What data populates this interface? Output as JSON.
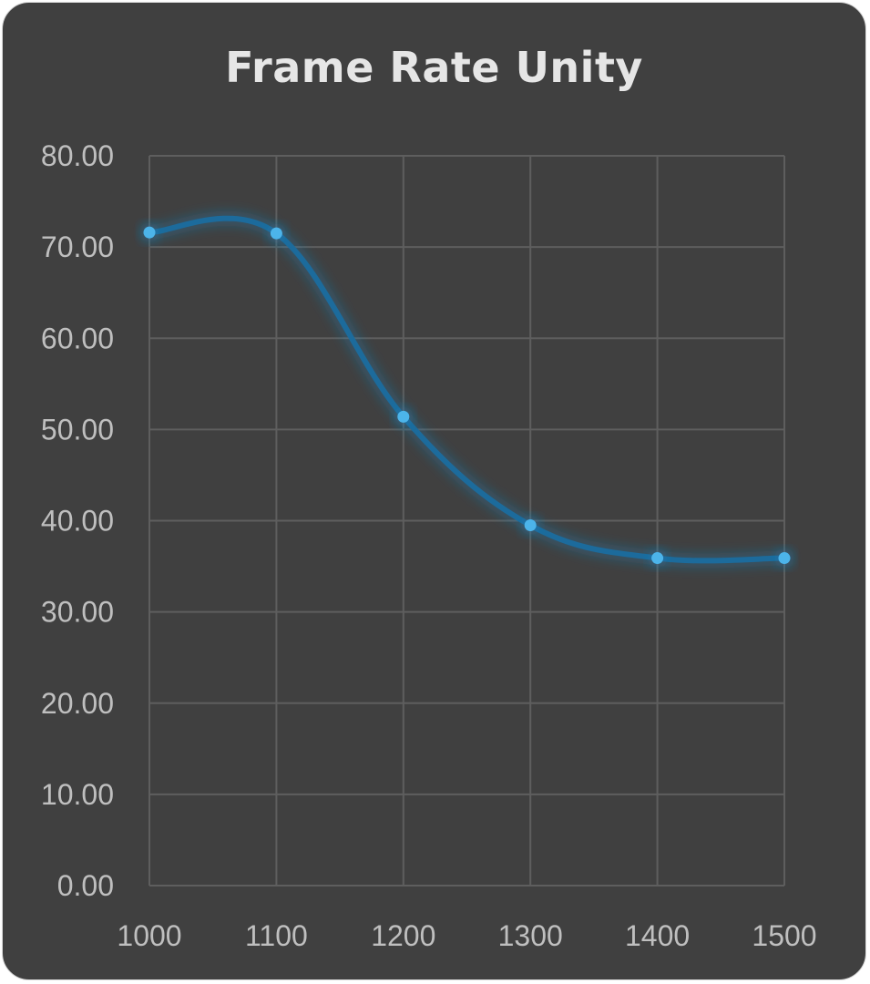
{
  "chart_data": {
    "type": "line",
    "title": "Frame Rate Unity",
    "xlabel": "",
    "ylabel": "",
    "categories": [
      "1000",
      "1100",
      "1200",
      "1300",
      "1400",
      "1500"
    ],
    "series": [
      {
        "values": [
          71.6,
          71.5,
          51.4,
          39.5,
          35.9,
          35.9
        ]
      }
    ],
    "ylim": [
      0,
      80
    ],
    "y_ticks": [
      "0.00",
      "10.00",
      "20.00",
      "30.00",
      "40.00",
      "50.00",
      "60.00",
      "70.00",
      "80.00"
    ],
    "grid": true,
    "legend": "none",
    "colors": {
      "background": "#404040",
      "line": "#1c6b9c",
      "marker": "#4cb4ea",
      "grid": "#5e5e5e",
      "text": "#bfbfbf",
      "title": "#e6e6e6"
    }
  }
}
